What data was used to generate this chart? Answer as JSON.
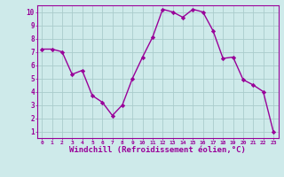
{
  "x": [
    0,
    1,
    2,
    3,
    4,
    5,
    6,
    7,
    8,
    9,
    10,
    11,
    12,
    13,
    14,
    15,
    16,
    17,
    18,
    19,
    20,
    21,
    22,
    23
  ],
  "y": [
    7.2,
    7.2,
    7.0,
    5.3,
    5.6,
    3.7,
    3.2,
    2.2,
    3.0,
    5.0,
    6.6,
    8.1,
    10.2,
    10.0,
    9.6,
    10.2,
    10.0,
    8.6,
    6.5,
    6.6,
    4.9,
    4.5,
    4.0,
    1.0
  ],
  "line_color": "#990099",
  "marker": "D",
  "markersize": 2.2,
  "linewidth": 1.0,
  "xlabel": "Windchill (Refroidissement éolien,°C)",
  "xlabel_fontsize": 6.5,
  "background_color": "#ceeaea",
  "grid_color": "#aacccc",
  "tick_color": "#990099",
  "label_color": "#990099",
  "xlim": [
    -0.5,
    23.5
  ],
  "ylim": [
    0.5,
    10.5
  ],
  "xticks": [
    0,
    1,
    2,
    3,
    4,
    5,
    6,
    7,
    8,
    9,
    10,
    11,
    12,
    13,
    14,
    15,
    16,
    17,
    18,
    19,
    20,
    21,
    22,
    23
  ],
  "yticks": [
    1,
    2,
    3,
    4,
    5,
    6,
    7,
    8,
    9,
    10
  ]
}
